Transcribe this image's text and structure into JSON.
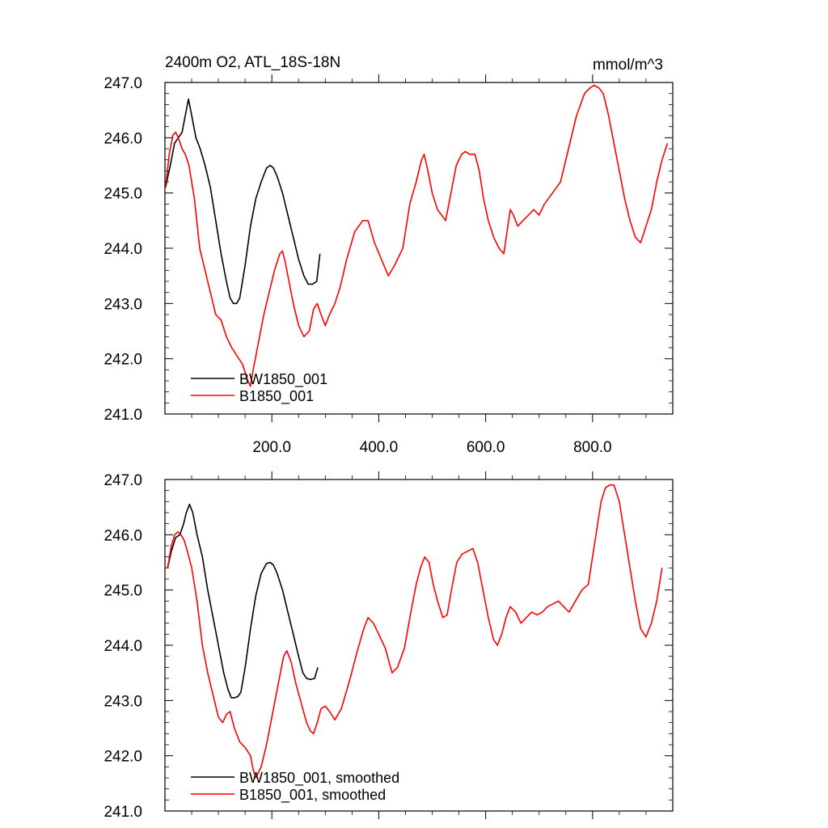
{
  "panels": {
    "top": {
      "title_left": "2400m O2, ATL_18S-18N",
      "title_right": "mmol/m^3",
      "legend": [
        "BW1850_001",
        "B1850_001"
      ]
    },
    "bottom": {
      "legend": [
        "BW1850_001, smoothed",
        "B1850_001, smoothed"
      ]
    }
  },
  "chart_data": [
    {
      "type": "line",
      "title": "2400m O2, ATL_18S-18N",
      "units_label": "mmol/m^3",
      "xlim": [
        0,
        950
      ],
      "ylim": [
        241,
        247
      ],
      "x_ticks": [
        200,
        400,
        600,
        800
      ],
      "x_tick_labels": [
        "200.0",
        "400.0",
        "600.0",
        "800.0"
      ],
      "y_ticks": [
        241,
        242,
        243,
        244,
        245,
        246,
        247
      ],
      "y_tick_labels": [
        "241.0",
        "242.0",
        "243.0",
        "244.0",
        "245.0",
        "246.0",
        "247.0"
      ],
      "legend_position": "bottom-left",
      "grid": false,
      "series": [
        {
          "name": "BW1850_001",
          "color": "#000000",
          "x": [
            1,
            10,
            18,
            25,
            32,
            38,
            44,
            50,
            58,
            66,
            75,
            85,
            95,
            105,
            115,
            122,
            128,
            134,
            140,
            150,
            160,
            170,
            180,
            190,
            197,
            203,
            210,
            220,
            230,
            240,
            250,
            260,
            268,
            276,
            284,
            290
          ],
          "y": [
            245.1,
            245.5,
            245.9,
            246.0,
            246.1,
            246.4,
            246.7,
            246.4,
            246.0,
            245.8,
            245.5,
            245.1,
            244.5,
            243.9,
            243.4,
            243.1,
            243.0,
            243.0,
            243.1,
            243.7,
            244.4,
            244.9,
            245.2,
            245.45,
            245.5,
            245.45,
            245.3,
            245.0,
            244.6,
            244.2,
            243.8,
            243.5,
            243.35,
            243.35,
            243.4,
            243.9
          ]
        },
        {
          "name": "B1850_001",
          "color": "#ff0000",
          "x": [
            1,
            8,
            15,
            20,
            25,
            32,
            38,
            45,
            55,
            65,
            75,
            85,
            95,
            105,
            115,
            125,
            135,
            145,
            155,
            160,
            165,
            175,
            185,
            195,
            205,
            215,
            220,
            225,
            232,
            240,
            250,
            260,
            270,
            278,
            285,
            292,
            300,
            308,
            318,
            328,
            340,
            355,
            370,
            380,
            392,
            405,
            418,
            430,
            445,
            458,
            470,
            480,
            485,
            492,
            500,
            510,
            525,
            535,
            545,
            555,
            562,
            570,
            580,
            588,
            596,
            605,
            615,
            625,
            634,
            640,
            646,
            652,
            660,
            670,
            680,
            690,
            700,
            710,
            725,
            740,
            755,
            770,
            785,
            795,
            803,
            812,
            820,
            830,
            840,
            850,
            860,
            870,
            880,
            890,
            900,
            910,
            920,
            930,
            940
          ],
          "y": [
            245.1,
            245.7,
            246.05,
            246.1,
            246.0,
            245.8,
            245.7,
            245.5,
            244.9,
            244.0,
            243.6,
            243.2,
            242.8,
            242.7,
            242.4,
            242.2,
            242.05,
            241.9,
            241.6,
            241.5,
            241.8,
            242.3,
            242.8,
            243.2,
            243.6,
            243.9,
            243.95,
            243.75,
            243.4,
            243.0,
            242.6,
            242.4,
            242.5,
            242.9,
            243.0,
            242.8,
            242.6,
            242.8,
            243.0,
            243.3,
            243.8,
            244.3,
            244.5,
            244.5,
            244.1,
            243.8,
            243.5,
            243.7,
            244.0,
            244.8,
            245.2,
            245.6,
            245.7,
            245.4,
            245.0,
            244.7,
            244.5,
            245.0,
            245.5,
            245.7,
            245.75,
            245.7,
            245.7,
            245.4,
            244.9,
            244.5,
            244.2,
            244.0,
            243.9,
            244.3,
            244.7,
            244.6,
            244.4,
            244.5,
            244.6,
            244.7,
            244.6,
            244.8,
            245.0,
            245.2,
            245.8,
            246.4,
            246.8,
            246.9,
            246.95,
            246.9,
            246.8,
            246.4,
            245.9,
            245.4,
            244.9,
            244.5,
            244.2,
            244.1,
            244.4,
            244.7,
            245.2,
            245.6,
            245.9
          ]
        }
      ]
    },
    {
      "type": "line",
      "xlim": [
        0,
        950
      ],
      "ylim": [
        241,
        247
      ],
      "x_ticks": [
        200,
        400,
        600,
        800
      ],
      "y_ticks": [
        241,
        242,
        243,
        244,
        245,
        246,
        247
      ],
      "y_tick_labels": [
        "241.0",
        "242.0",
        "243.0",
        "244.0",
        "245.0",
        "246.0",
        "247.0"
      ],
      "legend_position": "bottom-left",
      "grid": false,
      "series": [
        {
          "name": "BW1850_001, smoothed",
          "color": "#000000",
          "x": [
            5,
            12,
            20,
            28,
            35,
            40,
            46,
            52,
            60,
            70,
            80,
            90,
            100,
            110,
            118,
            124,
            130,
            136,
            142,
            150,
            160,
            170,
            180,
            190,
            197,
            203,
            210,
            220,
            230,
            240,
            250,
            258,
            265,
            272,
            280,
            286
          ],
          "y": [
            245.4,
            245.7,
            245.95,
            246.0,
            246.2,
            246.4,
            246.55,
            246.4,
            246.0,
            245.6,
            245.0,
            244.5,
            244.0,
            243.5,
            243.2,
            243.05,
            243.05,
            243.07,
            243.15,
            243.6,
            244.3,
            244.9,
            245.3,
            245.48,
            245.5,
            245.45,
            245.3,
            245.0,
            244.6,
            244.2,
            243.8,
            243.5,
            243.4,
            243.38,
            243.4,
            243.6
          ]
        },
        {
          "name": "B1850_001, smoothed",
          "color": "#ff0000",
          "x": [
            5,
            12,
            18,
            24,
            30,
            36,
            42,
            50,
            60,
            70,
            80,
            90,
            100,
            108,
            115,
            122,
            130,
            140,
            150,
            160,
            165,
            170,
            180,
            190,
            200,
            210,
            218,
            222,
            228,
            236,
            245,
            255,
            265,
            272,
            278,
            285,
            292,
            300,
            308,
            318,
            330,
            345,
            360,
            372,
            380,
            390,
            400,
            412,
            425,
            435,
            448,
            460,
            470,
            478,
            486,
            494,
            502,
            510,
            520,
            528,
            536,
            546,
            556,
            566,
            576,
            585,
            595,
            605,
            615,
            622,
            630,
            638,
            646,
            656,
            666,
            676,
            686,
            696,
            706,
            716,
            726,
            736,
            746,
            756,
            768,
            780,
            792,
            800,
            808,
            816,
            824,
            832,
            840,
            850,
            860,
            870,
            880,
            890,
            900,
            910,
            920,
            930
          ],
          "y": [
            245.4,
            245.8,
            246.0,
            246.05,
            246.0,
            245.9,
            245.7,
            245.4,
            244.8,
            244.0,
            243.5,
            243.1,
            242.7,
            242.6,
            242.75,
            242.8,
            242.5,
            242.25,
            242.15,
            242.0,
            241.75,
            241.6,
            241.8,
            242.2,
            242.7,
            243.2,
            243.6,
            243.8,
            243.9,
            243.7,
            243.3,
            242.95,
            242.6,
            242.45,
            242.4,
            242.6,
            242.85,
            242.9,
            242.8,
            242.65,
            242.85,
            243.35,
            243.9,
            244.3,
            244.5,
            244.4,
            244.2,
            243.95,
            243.5,
            243.6,
            243.95,
            244.6,
            245.1,
            245.4,
            245.6,
            245.5,
            245.1,
            244.8,
            244.5,
            244.55,
            245.0,
            245.5,
            245.65,
            245.7,
            245.75,
            245.5,
            245.0,
            244.5,
            244.1,
            244.0,
            244.2,
            244.5,
            244.7,
            244.6,
            244.4,
            244.5,
            244.6,
            244.55,
            244.6,
            244.7,
            244.75,
            244.8,
            244.7,
            244.6,
            244.8,
            245.0,
            245.1,
            245.6,
            246.1,
            246.6,
            246.85,
            246.9,
            246.9,
            246.6,
            246.0,
            245.4,
            244.8,
            244.3,
            244.15,
            244.4,
            244.8,
            245.4
          ]
        }
      ]
    }
  ]
}
